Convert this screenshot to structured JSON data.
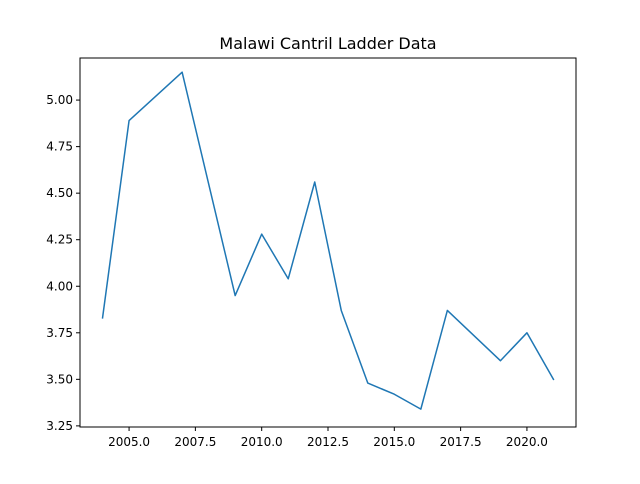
{
  "chart_data": {
    "type": "line",
    "title": "Malawi Cantril Ladder Data",
    "xlabel": "",
    "ylabel": "",
    "xlim": [
      2003.15,
      2021.85
    ],
    "ylim": [
      3.244,
      5.226
    ],
    "xticks": [
      2005.0,
      2007.5,
      2010.0,
      2012.5,
      2015.0,
      2017.5,
      2020.0
    ],
    "xtick_labels": [
      "2005.0",
      "2007.5",
      "2010.0",
      "2012.5",
      "2015.0",
      "2017.5",
      "2020.0"
    ],
    "yticks": [
      3.25,
      3.5,
      3.75,
      4.0,
      4.25,
      4.5,
      4.75,
      5.0
    ],
    "ytick_labels": [
      "3.25",
      "3.50",
      "3.75",
      "4.00",
      "4.25",
      "4.50",
      "4.75",
      "5.00"
    ],
    "grid": false,
    "series": [
      {
        "color": "#1f77b4",
        "x": [
          2004,
          2005,
          2007,
          2009,
          2010,
          2011,
          2012,
          2013,
          2014,
          2015,
          2016,
          2017,
          2019,
          2020,
          2021
        ],
        "y": [
          3.83,
          4.89,
          5.15,
          3.95,
          4.28,
          4.04,
          4.56,
          3.87,
          3.48,
          3.42,
          3.34,
          3.87,
          3.6,
          3.75,
          3.5
        ]
      }
    ]
  }
}
